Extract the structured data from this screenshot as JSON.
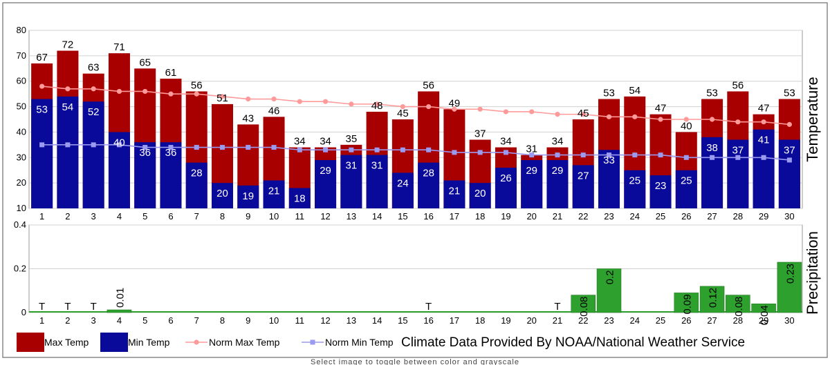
{
  "chart_data": [
    {
      "type": "bar",
      "categories": [
        "1",
        "2",
        "3",
        "4",
        "5",
        "6",
        "7",
        "8",
        "9",
        "10",
        "11",
        "12",
        "13",
        "14",
        "15",
        "16",
        "17",
        "18",
        "19",
        "20",
        "21",
        "22",
        "23",
        "24",
        "25",
        "26",
        "27",
        "28",
        "29",
        "30"
      ],
      "ylabel": "Temperature",
      "ylim": [
        10,
        80
      ],
      "yticks": [
        "10",
        "20",
        "30",
        "40",
        "50",
        "60",
        "70",
        "80"
      ],
      "grid": true,
      "series": [
        {
          "name": "Max Temp",
          "type": "bar",
          "color": "#a80000",
          "values": [
            67,
            72,
            63,
            71,
            65,
            61,
            56,
            51,
            43,
            46,
            34,
            34,
            35,
            48,
            45,
            56,
            49,
            37,
            34,
            31,
            34,
            45,
            53,
            54,
            47,
            40,
            53,
            56,
            47,
            53
          ]
        },
        {
          "name": "Min Temp",
          "type": "bar",
          "color": "#0a0a9a",
          "values": [
            53,
            54,
            52,
            40,
            36,
            36,
            28,
            20,
            19,
            21,
            18,
            29,
            31,
            31,
            24,
            28,
            21,
            20,
            26,
            29,
            29,
            27,
            33,
            25,
            23,
            25,
            38,
            37,
            41,
            37
          ]
        },
        {
          "name": "Norm Max Temp",
          "type": "line",
          "color": "#ff9a9a",
          "values": [
            58,
            57,
            57,
            56,
            56,
            55,
            55,
            54,
            53,
            53,
            52,
            52,
            51,
            51,
            50,
            50,
            49,
            49,
            48,
            48,
            47,
            47,
            46,
            46,
            45,
            45,
            45,
            44,
            44,
            43
          ]
        },
        {
          "name": "Norm Min Temp",
          "type": "line",
          "color": "#9a9af0",
          "values": [
            35,
            35,
            35,
            35,
            34,
            34,
            34,
            34,
            34,
            34,
            33,
            33,
            33,
            33,
            33,
            33,
            32,
            32,
            32,
            31,
            31,
            31,
            31,
            31,
            31,
            30,
            30,
            30,
            30,
            29
          ]
        }
      ]
    },
    {
      "type": "bar",
      "categories": [
        "1",
        "2",
        "3",
        "4",
        "5",
        "6",
        "7",
        "8",
        "9",
        "10",
        "11",
        "12",
        "13",
        "14",
        "15",
        "16",
        "17",
        "18",
        "19",
        "20",
        "21",
        "22",
        "23",
        "24",
        "25",
        "26",
        "27",
        "28",
        "29",
        "30"
      ],
      "ylabel": "Precipitation",
      "ylim": [
        0,
        0.4
      ],
      "yticks": [
        "0",
        "0.2",
        "0.4"
      ],
      "grid": true,
      "series": [
        {
          "name": "Precipitation",
          "color": "#2ea02e",
          "values": [
            0,
            0,
            0,
            0.01,
            0,
            0,
            0,
            0,
            0,
            0,
            0,
            0,
            0,
            0,
            0,
            0,
            0,
            0,
            0,
            0,
            0,
            0.08,
            0.2,
            0,
            0,
            0.09,
            0.12,
            0.08,
            0.04,
            0.23
          ],
          "labels": [
            "T",
            "T",
            "T",
            "0.01",
            "",
            "",
            "",
            "",
            "",
            "",
            "",
            "",
            "",
            "",
            "",
            "T",
            "",
            "",
            "",
            "",
            "T",
            "0.08",
            "0.2",
            "",
            "",
            "0.09",
            "0.12",
            "0.08",
            "0.04",
            "0.23"
          ]
        }
      ]
    }
  ],
  "legend": [
    {
      "label": "Max Temp",
      "color": "#a80000",
      "kind": "box"
    },
    {
      "label": "Min Temp",
      "color": "#0a0a9a",
      "kind": "box"
    },
    {
      "label": "Norm Max Temp",
      "color": "#ff9a9a",
      "kind": "line"
    },
    {
      "label": "Norm Min Temp",
      "color": "#9a9af0",
      "kind": "line"
    }
  ],
  "credit": "Climate Data Provided By NOAA/National Weather Service",
  "footnote": "Select image to toggle between color and grayscale"
}
